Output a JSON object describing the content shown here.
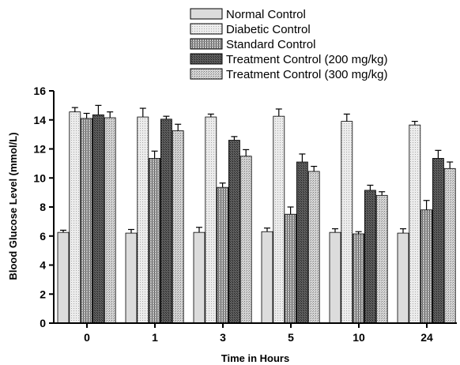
{
  "chart_data": {
    "type": "bar",
    "title": "",
    "xlabel": "Time in Hours",
    "ylabel": "Blood Glucose Level (mmol/L)",
    "ylim": [
      0,
      16
    ],
    "yticks": [
      0,
      2,
      4,
      6,
      8,
      10,
      12,
      14,
      16
    ],
    "categories": [
      "0",
      "1",
      "3",
      "5",
      "10",
      "24"
    ],
    "legend_position": "top-right",
    "grid": false,
    "series": [
      {
        "name": "Normal Control",
        "color": "#dcdcdc",
        "pattern": "solid",
        "values": [
          6.25,
          6.2,
          6.25,
          6.3,
          6.25,
          6.2
        ],
        "errors": [
          0.15,
          0.25,
          0.35,
          0.25,
          0.25,
          0.3
        ]
      },
      {
        "name": "Diabetic Control",
        "color": "#e6e6e6",
        "pattern": "dotted",
        "values": [
          14.55,
          14.2,
          14.2,
          14.25,
          13.9,
          13.65
        ],
        "errors": [
          0.3,
          0.6,
          0.2,
          0.5,
          0.5,
          0.25
        ]
      },
      {
        "name": "Standard Control",
        "color": "#9e9e9e",
        "pattern": "hatched",
        "values": [
          14.1,
          11.35,
          9.35,
          7.5,
          6.15,
          7.8
        ],
        "errors": [
          0.35,
          0.5,
          0.3,
          0.5,
          0.15,
          0.65
        ]
      },
      {
        "name": "Treatment Control (200 mg/kg)",
        "color": "#4a4a4a",
        "pattern": "dark-hatched",
        "values": [
          14.35,
          14.05,
          12.6,
          11.1,
          9.15,
          11.35
        ],
        "errors": [
          0.65,
          0.2,
          0.25,
          0.55,
          0.35,
          0.55
        ]
      },
      {
        "name": "Treatment Control (300 mg/kg)",
        "color": "#b8b8b8",
        "pattern": "light-hatched",
        "values": [
          14.15,
          13.25,
          11.5,
          10.45,
          8.8,
          10.65
        ],
        "errors": [
          0.4,
          0.45,
          0.45,
          0.35,
          0.25,
          0.45
        ]
      }
    ]
  }
}
